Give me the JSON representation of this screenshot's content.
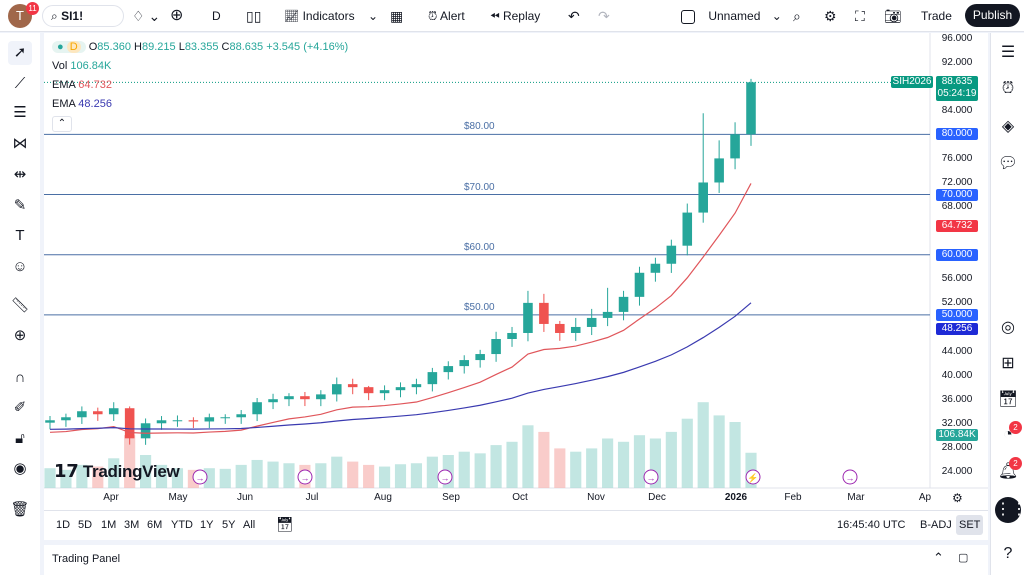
{
  "topbar": {
    "avatar_letter": "T",
    "avatar_badge": "11",
    "symbol": "SI1!",
    "interval": "D",
    "indicators": "Indicators",
    "alert": "Alert",
    "replay": "Replay",
    "layout_name": "Unnamed",
    "trade": "Trade",
    "publish": "Publish"
  },
  "legend": {
    "interval": "D",
    "open_label": "O",
    "open": "85.360",
    "high_label": "H",
    "high": "89.215",
    "low_label": "L",
    "low": "83.355",
    "close_label": "C",
    "close": "88.635",
    "change": "+3.545 (+4.16%)",
    "vol_label": "Vol",
    "vol": "106.84K",
    "ema1_label": "EMA",
    "ema1": "64.732",
    "ema2_label": "EMA",
    "ema2": "48.256"
  },
  "price_labels": {
    "symbol_tag": "SIH2026",
    "last": "88.635",
    "countdown": "05:24:19",
    "ema1": "64.732",
    "ema2": "48.256",
    "volume": "106.84K"
  },
  "horizontal_lines": [
    {
      "value": 80,
      "label": "$80.00",
      "axis": "80.000"
    },
    {
      "value": 70,
      "label": "$70.00",
      "axis": "70.000"
    },
    {
      "value": 60,
      "label": "$60.00",
      "axis": "60.000"
    },
    {
      "value": 50,
      "label": "$50.00",
      "axis": "50.000"
    }
  ],
  "watermark": "TradingView",
  "bottombar": {
    "ranges": [
      "1D",
      "5D",
      "1M",
      "3M",
      "6M",
      "YTD",
      "1Y",
      "5Y",
      "All"
    ],
    "clock": "16:45:40 UTC",
    "badj": "B-ADJ",
    "set": "SET"
  },
  "trading_panel": "Trading Panel",
  "colors": {
    "up": "#26a69a",
    "down": "#ef5350",
    "ema1": "#e0565b",
    "ema2": "#3a3ab0",
    "hline": "#2962ff",
    "publish_bg": "#131722"
  },
  "chart_data": {
    "type": "candlestick",
    "yaxis_ticks": [
      "96.000",
      "92.000",
      "84.000",
      "76.000",
      "72.000",
      "68.000",
      "56.000",
      "52.000",
      "44.000",
      "40.000",
      "36.000",
      "32.000",
      "28.000",
      "24.000"
    ],
    "ylim": [
      22,
      97
    ],
    "xaxis_ticks": [
      "Apr",
      "May",
      "Jun",
      "Jul",
      "Aug",
      "Sep",
      "Oct",
      "Nov",
      "Dec",
      "2026",
      "Feb",
      "Mar",
      "Ap"
    ],
    "weekly_close": [
      32.5,
      33,
      34,
      33.5,
      34.5,
      29.5,
      32,
      32.5,
      32.5,
      32.3,
      33,
      33,
      33.5,
      35.5,
      36,
      36.5,
      36,
      36.8,
      38.5,
      38,
      37,
      37.5,
      38,
      38.5,
      40.5,
      41.5,
      42.5,
      43.5,
      46,
      47,
      52,
      48.5,
      47,
      48,
      49.5,
      50.5,
      53,
      57,
      58.5,
      61.5,
      67,
      72,
      76,
      80,
      88.635
    ],
    "weekly_high": [
      33.2,
      33.6,
      34.8,
      34.6,
      35.5,
      34.8,
      32.8,
      33.2,
      33.3,
      33,
      33.6,
      33.5,
      34.2,
      36.2,
      36.9,
      37,
      37.2,
      37.5,
      39.6,
      39.4,
      38.2,
      38.3,
      38.8,
      39.4,
      41.2,
      42.3,
      43.3,
      44.2,
      47.2,
      48,
      54,
      53.5,
      49,
      49.5,
      51,
      54.5,
      54,
      58,
      59.5,
      62.5,
      68.5,
      83.5,
      79,
      82,
      89.215
    ],
    "weekly_volume": [
      60,
      55,
      70,
      65,
      90,
      160,
      100,
      70,
      60,
      55,
      60,
      58,
      70,
      85,
      80,
      75,
      70,
      75,
      95,
      80,
      70,
      65,
      72,
      75,
      95,
      100,
      110,
      105,
      130,
      140,
      190,
      170,
      120,
      110,
      120,
      150,
      140,
      160,
      150,
      170,
      210,
      260,
      220,
      200,
      106.84
    ]
  }
}
